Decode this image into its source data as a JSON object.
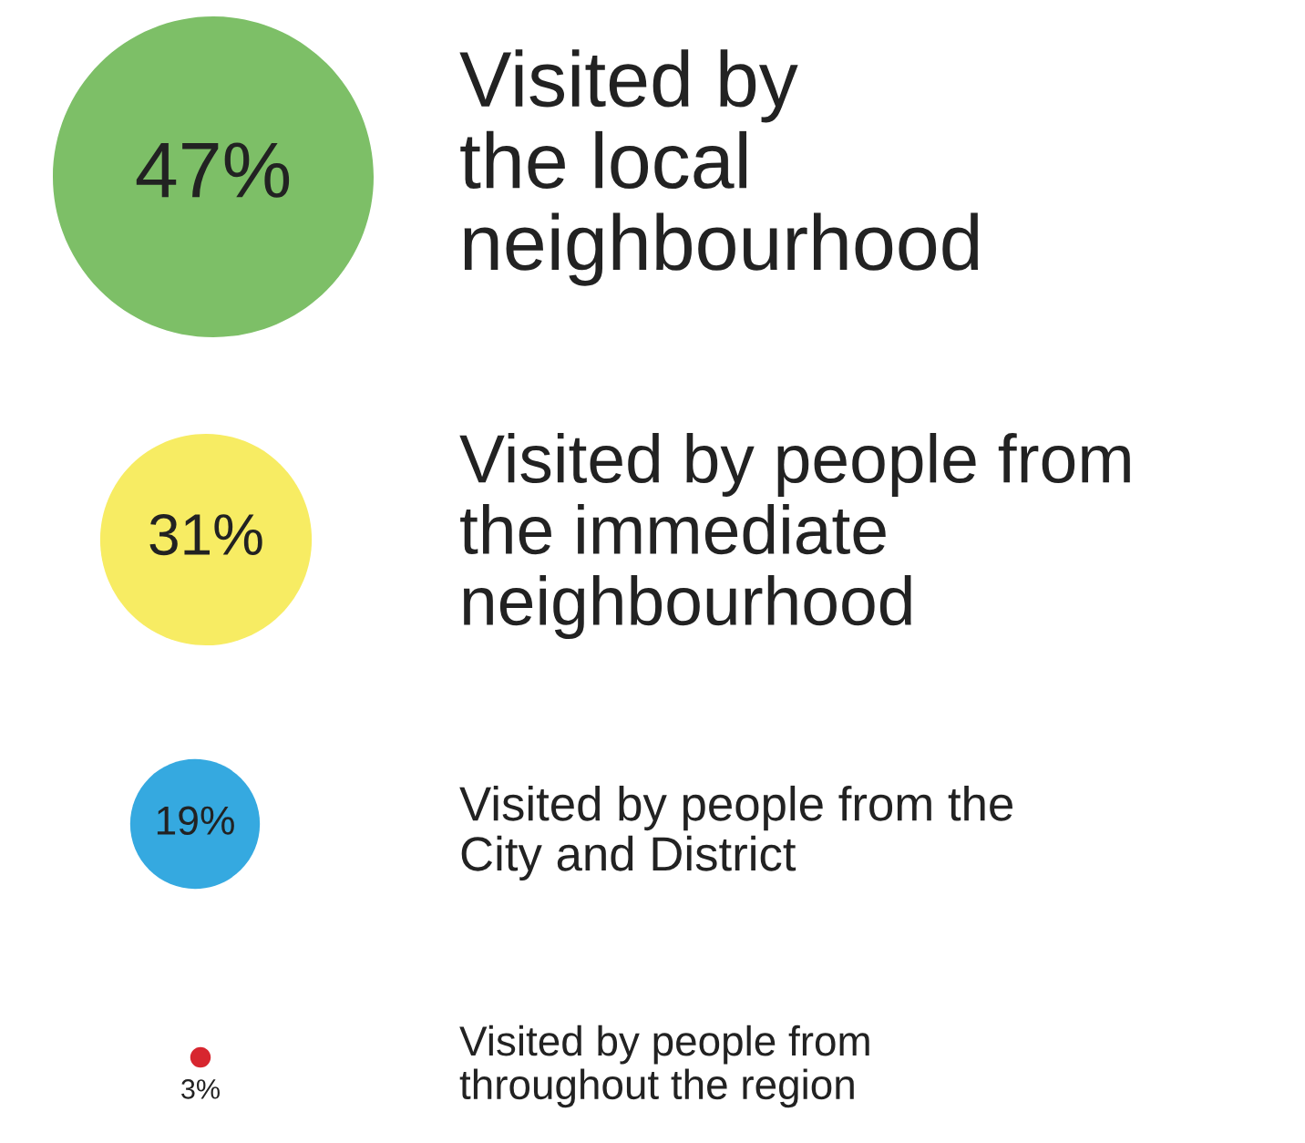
{
  "chart_data": {
    "type": "other",
    "categories": [
      "Visited by\nthe local\nneighbourhood",
      "Visited by people from\nthe immediate\nneighbourhood",
      "Visited by people from the\nCity and District",
      "Visited by people from\nthroughout the region"
    ],
    "values": [
      47,
      31,
      19,
      3
    ],
    "value_labels": [
      "47%",
      "31%",
      "19%",
      "3%"
    ],
    "colors": [
      "#7dbf67",
      "#f7ec63",
      "#35a9e0",
      "#d7262f"
    ]
  }
}
